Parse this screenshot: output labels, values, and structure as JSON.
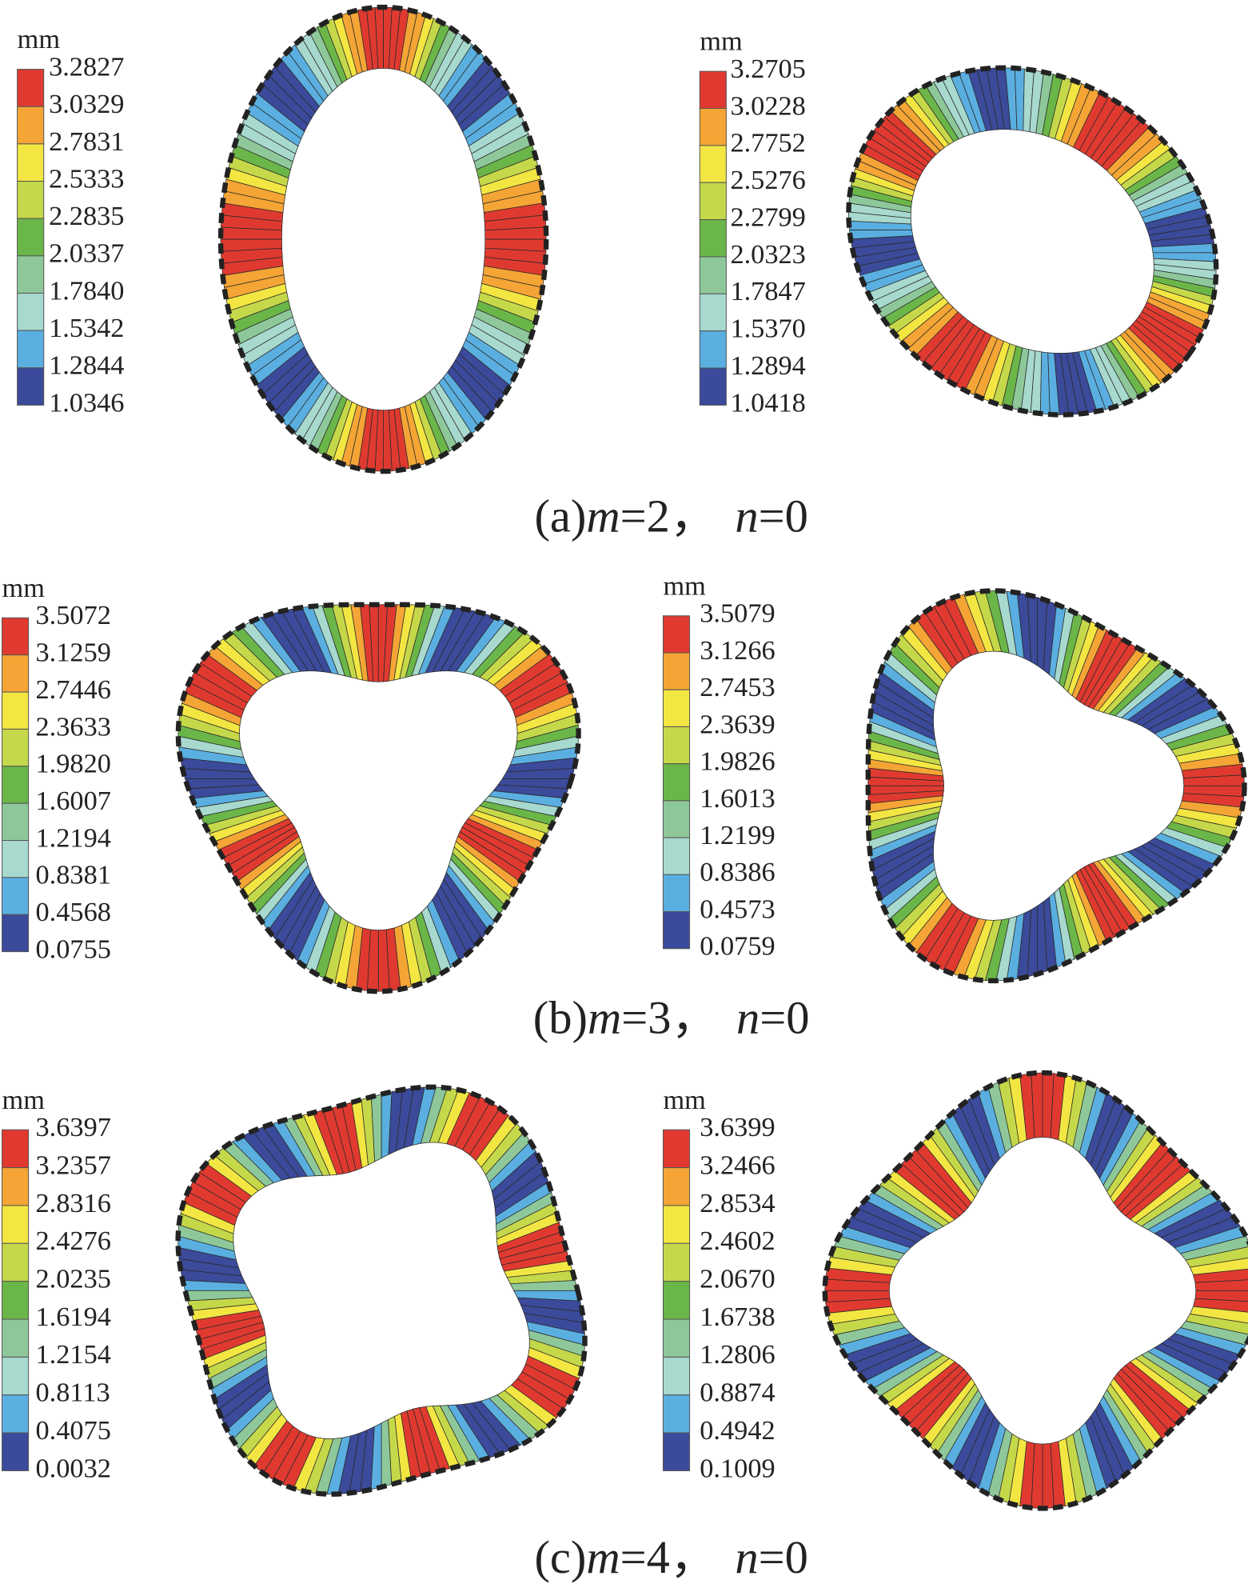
{
  "colors": [
    "#e03a30",
    "#f4a535",
    "#f3e642",
    "#c5d84a",
    "#6bb648",
    "#8ec89a",
    "#a7d9cf",
    "#5aafe0",
    "#3b4a9a"
  ],
  "panels": [
    {
      "caption": [
        {
          "text": "(a)",
          "italic": false
        },
        {
          "text": "m",
          "italic": true
        },
        {
          "text": "=2，",
          "italic": false
        },
        {
          "text": "n",
          "italic": true
        },
        {
          "text": "=0",
          "italic": false
        }
      ],
      "legends": [
        {
          "unit": "mm",
          "labels": [
            "3.2827",
            "3.0329",
            "2.7831",
            "2.5333",
            "2.2835",
            "2.0337",
            "1.7840",
            "1.5342",
            "1.2844",
            "1.0346"
          ]
        },
        {
          "unit": "mm",
          "labels": [
            "3.2705",
            "3.0228",
            "2.7752",
            "2.5276",
            "2.2799",
            "2.0323",
            "1.7847",
            "1.5370",
            "1.2894",
            "1.0418"
          ]
        }
      ]
    },
    {
      "caption": [
        {
          "text": "(b)",
          "italic": false
        },
        {
          "text": "m",
          "italic": true
        },
        {
          "text": "=3，",
          "italic": false
        },
        {
          "text": "n",
          "italic": true
        },
        {
          "text": "=0",
          "italic": false
        }
      ],
      "legends": [
        {
          "unit": "mm",
          "labels": [
            "3.5072",
            "3.1259",
            "2.7446",
            "2.3633",
            "1.9820",
            "1.6007",
            "1.2194",
            "0.8381",
            "0.4568",
            "0.0755"
          ]
        },
        {
          "unit": "mm",
          "labels": [
            "3.5079",
            "3.1266",
            "2.7453",
            "2.3639",
            "1.9826",
            "1.6013",
            "1.2199",
            "0.8386",
            "0.4573",
            "0.0759"
          ]
        }
      ]
    },
    {
      "caption": [
        {
          "text": "(c)",
          "italic": false
        },
        {
          "text": "m",
          "italic": true
        },
        {
          "text": "=4，",
          "italic": false
        },
        {
          "text": "n",
          "italic": true
        },
        {
          "text": "=0",
          "italic": false
        }
      ],
      "legends": [
        {
          "unit": "mm",
          "labels": [
            "3.6397",
            "3.2357",
            "2.8316",
            "2.4276",
            "2.0235",
            "1.6194",
            "1.2154",
            "0.8113",
            "0.4075",
            "0.0032"
          ]
        },
        {
          "unit": "mm",
          "labels": [
            "3.6399",
            "3.2466",
            "2.8534",
            "2.4602",
            "2.0670",
            "1.6738",
            "1.2806",
            "0.8874",
            "0.4942",
            "0.1009"
          ]
        }
      ]
    }
  ]
}
